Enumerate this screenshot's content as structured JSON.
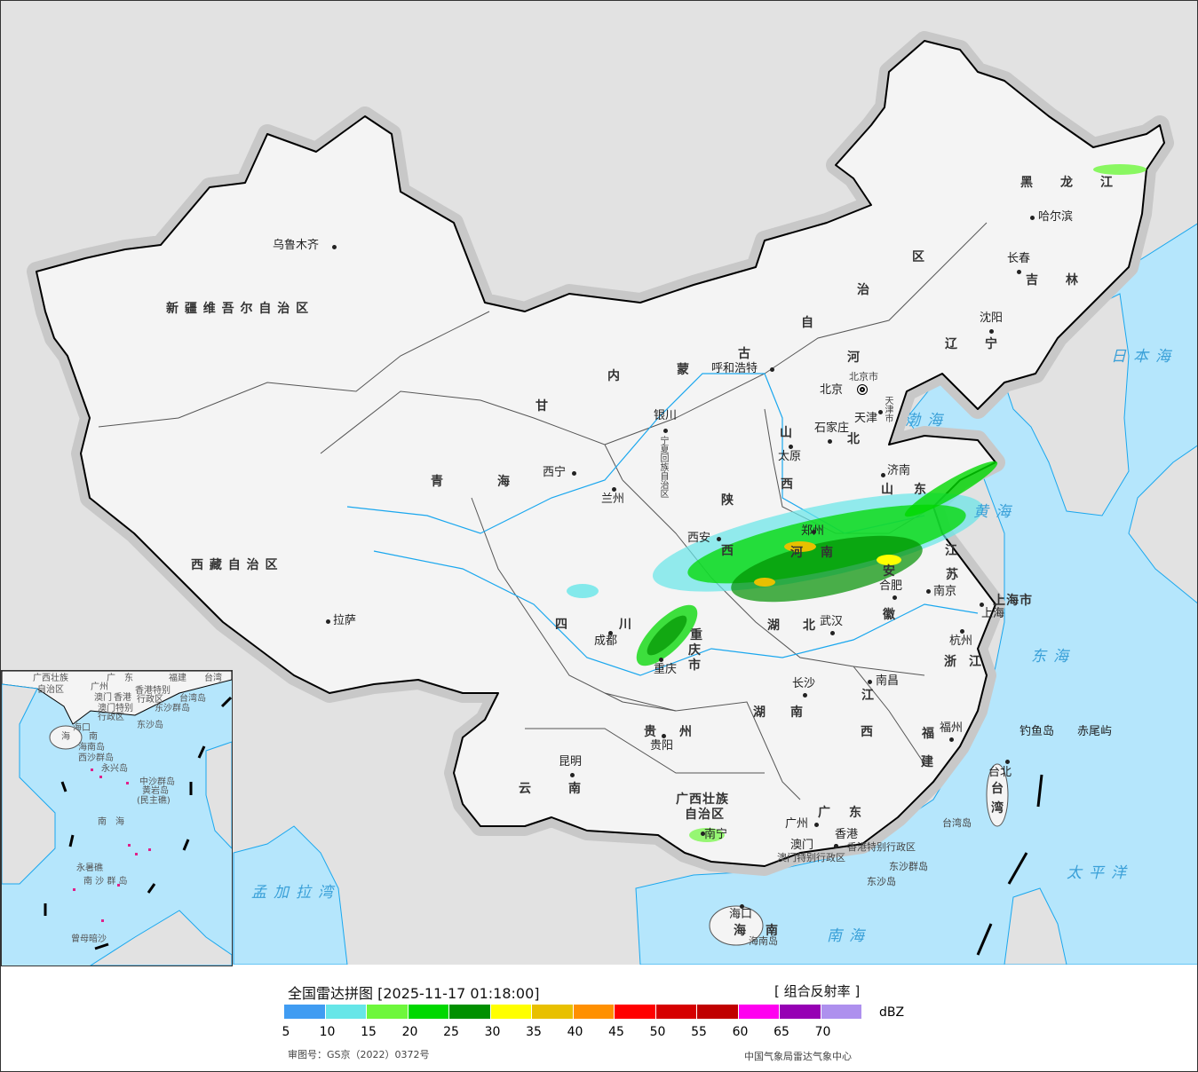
{
  "legend": {
    "title": "全国雷达拼图 [2025-11-17 01:18:00]",
    "product": "[ 组合反射率 ]",
    "unit": "dBZ",
    "levels": [
      "5",
      "10",
      "15",
      "20",
      "25",
      "30",
      "35",
      "40",
      "45",
      "50",
      "55",
      "60",
      "65",
      "70"
    ],
    "colors": [
      "#409cf2",
      "#66e6e8",
      "#6ef73c",
      "#00d800",
      "#009000",
      "#ffff00",
      "#e8c000",
      "#ff9000",
      "#ff0000",
      "#d60000",
      "#c00000",
      "#ff00f0",
      "#9600b4",
      "#ae90ee"
    ],
    "approval": "审图号：GS京（2022）0372号",
    "credit": "中国气象局雷达气象中心"
  },
  "map": {
    "colors": {
      "land": "#f4f4f4",
      "foreign_land": "#e2e2e2",
      "sea": "#b5e6fc",
      "river": "#1aa7ee",
      "border": "#000000"
    },
    "capital": "北京",
    "cities": [
      "乌鲁木齐",
      "呼和浩特",
      "银川",
      "西宁",
      "兰州",
      "拉萨",
      "成都",
      "重庆",
      "贵阳",
      "昆明",
      "南宁",
      "广州",
      "澳门",
      "香港",
      "海口",
      "长沙",
      "武汉",
      "南昌",
      "福州",
      "台北",
      "杭州",
      "南京",
      "上海",
      "合肥",
      "郑州",
      "济南",
      "西安",
      "太原",
      "石家庄",
      "天津",
      "沈阳",
      "长春",
      "哈尔滨",
      "钓鱼岛",
      "赤尾屿"
    ],
    "provinces": [
      "新 疆 维 吾 尔 自 治 区",
      "西 藏 自 治 区",
      "青　　　　海",
      "甘",
      "内",
      "蒙",
      "古",
      "自",
      "治",
      "区",
      "黑　　龙　　江",
      "吉　　林",
      "辽　　宁",
      "河",
      "北",
      "山",
      "西",
      "陕",
      "西",
      "河",
      "南",
      "山",
      "东",
      "江",
      "苏",
      "安",
      "徽",
      "湖",
      "北",
      "四",
      "川",
      "重",
      "庆",
      "市",
      "贵",
      "州",
      "云",
      "南",
      "湖",
      "南",
      "江",
      "西",
      "浙",
      "江",
      "福",
      "建",
      "台",
      "湾",
      "广西壮族",
      "自治区",
      "广",
      "东",
      "海",
      "南",
      "上海市",
      "宁夏回族自治区",
      "北京市",
      "天津市"
    ],
    "special": [
      "香港特别行政区",
      "澳门特别行政区",
      "东沙群岛",
      "东沙岛",
      "海南岛",
      "台湾岛"
    ],
    "seas": [
      "日本海",
      "渤海",
      "黄海",
      "东海",
      "太平洋",
      "南海",
      "孟加拉湾"
    ],
    "inset": [
      "广西壮族",
      "自治区",
      "广　东",
      "福建",
      "台湾",
      "广州",
      "澳门",
      "香港",
      "香港特别",
      "行政区",
      "澳门特别",
      "行政区",
      "台湾岛",
      "东沙群岛",
      "东沙岛",
      "海口",
      "海",
      "南",
      "海南岛",
      "西沙群岛",
      "永兴岛",
      "中沙群岛",
      "黄岩岛",
      "(民主礁)",
      "南　海",
      "永暑礁",
      "南 沙 群 岛",
      "曾母暗沙"
    ]
  }
}
